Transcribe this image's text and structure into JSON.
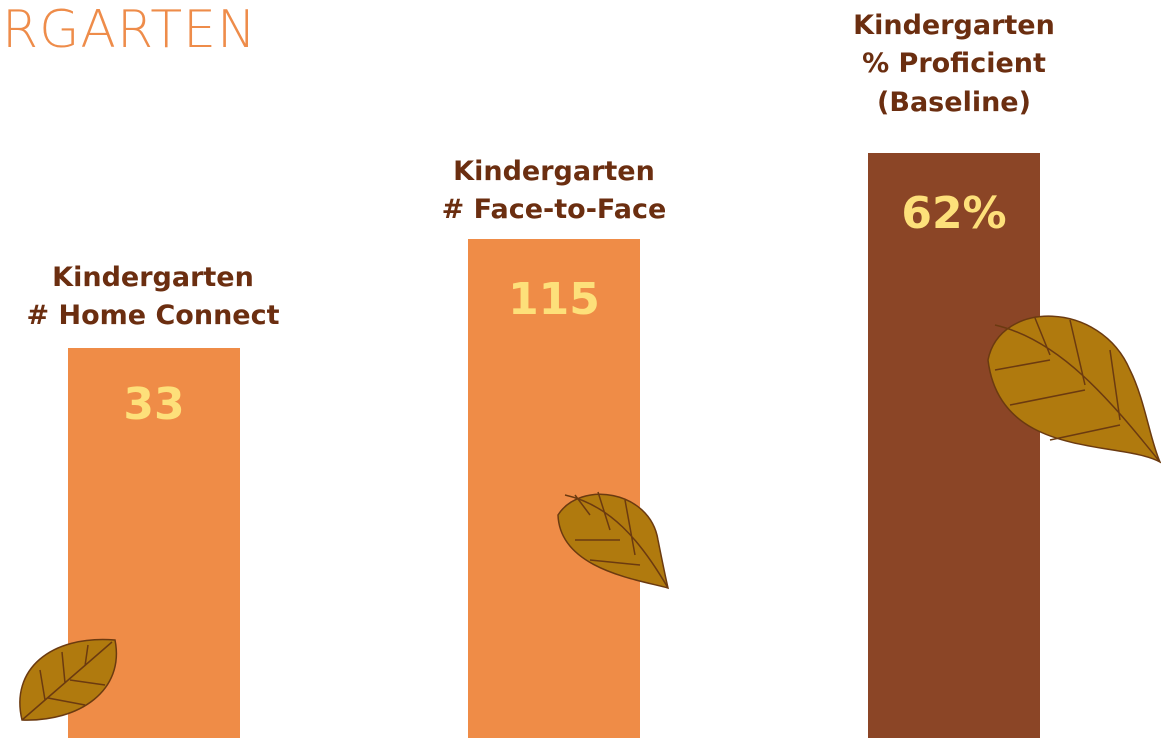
{
  "header": {
    "title": "RGARTEN"
  },
  "panels": [
    {
      "label": [
        "Kindergarten",
        "# Home Connect"
      ],
      "value": "33"
    },
    {
      "label": [
        "Kindergarten",
        "# Face-to-Face"
      ],
      "value": "115"
    },
    {
      "label": [
        "Kindergarten",
        "% Proficient",
        "(Baseline)"
      ],
      "value": "62%"
    }
  ]
}
